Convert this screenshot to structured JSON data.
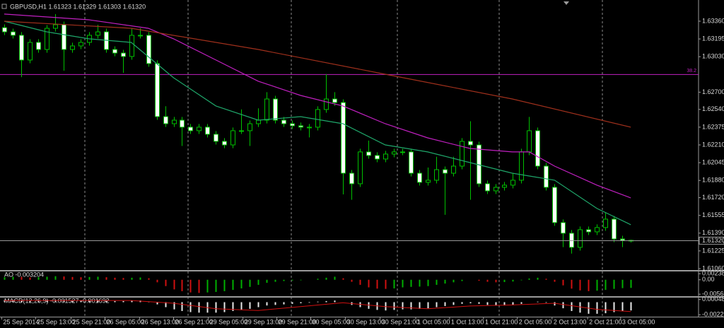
{
  "chart_data": [
    {
      "type": "candlestick",
      "title": "GBPUSD,H1  1.61323 1.61329 1.61303 1.61320",
      "xlim": [
        -0.5,
        82
      ],
      "xticks": [
        {
          "value": -0.3,
          "label": "25 Sep 2014"
        },
        {
          "value": 3.7,
          "label": "25 Sep 13:00"
        },
        {
          "value": 7.9,
          "label": "25 Sep 21:00"
        },
        {
          "value": 11.9,
          "label": "26 Sep 05:00"
        },
        {
          "value": 16.0,
          "label": "26 Sep 13:00"
        },
        {
          "value": 20.0,
          "label": "26 Sep 21:00"
        },
        {
          "value": 24.1,
          "label": "29 Sep 05:00"
        },
        {
          "value": 28.2,
          "label": "29 Sep 13:00"
        },
        {
          "value": 32.2,
          "label": "29 Sep 21:00"
        },
        {
          "value": 36.2,
          "label": "30 Sep 05:00"
        },
        {
          "value": 40.3,
          "label": "30 Sep 13:00"
        },
        {
          "value": 44.4,
          "label": "30 Sep 21:00"
        },
        {
          "value": 48.6,
          "label": "1 Oct 05:00"
        },
        {
          "value": 52.6,
          "label": "1 Oct 13:00"
        },
        {
          "value": 56.6,
          "label": "1 Oct 21:00"
        },
        {
          "value": 60.6,
          "label": "2 Oct 05:00"
        },
        {
          "value": 64.7,
          "label": "2 Oct 13:00"
        },
        {
          "value": 68.9,
          "label": "2 Oct 21:00"
        },
        {
          "value": 72.8,
          "label": "3 Oct 05:00"
        }
      ],
      "ylim": [
        1.61047,
        1.63557
      ],
      "yticks": [
        {
          "value": 1.6336,
          "label": "1.63360"
        },
        {
          "value": 1.63195,
          "label": "1.63195"
        },
        {
          "value": 1.6303,
          "label": "1.63030"
        },
        {
          "value": 1.627,
          "label": "1.62700"
        },
        {
          "value": 1.6254,
          "label": "1.62540"
        },
        {
          "value": 1.62375,
          "label": "1.62375"
        },
        {
          "value": 1.6221,
          "label": "1.62210"
        },
        {
          "value": 1.62045,
          "label": "1.62045"
        },
        {
          "value": 1.6188,
          "label": "1.61880"
        },
        {
          "value": 1.6172,
          "label": "1.61720"
        },
        {
          "value": 1.61555,
          "label": "1.61555"
        },
        {
          "value": 1.6139,
          "label": "1.61390"
        },
        {
          "value": 1.61225,
          "label": "1.61225"
        },
        {
          "value": 1.6106,
          "label": "1.61060"
        }
      ],
      "up_color": "#000000",
      "down_color": "#ffffff",
      "wick_color": "#00c000",
      "open": [
        1.633,
        1.63261,
        1.63229,
        1.62999,
        1.63163,
        1.63097,
        1.63294,
        1.63327,
        1.63097,
        1.6313,
        1.63163,
        1.63229,
        1.63261,
        1.63097,
        1.63064,
        1.63032,
        1.63229,
        1.63229,
        1.62966,
        1.62473,
        1.62407,
        1.6244,
        1.62375,
        1.62342,
        1.62375,
        1.62309,
        1.62243,
        1.6221,
        1.62342,
        1.62342,
        1.62407,
        1.6244,
        1.62637,
        1.6244,
        1.62407,
        1.62388,
        1.62375,
        1.62375,
        1.62539,
        1.62637,
        1.62604,
        1.61947,
        1.61849,
        1.62145,
        1.62112,
        1.62079,
        1.62125,
        1.62145,
        1.62145,
        1.61947,
        1.61862,
        1.61882,
        1.6198,
        1.61947,
        1.62013,
        1.62243,
        1.6221,
        1.61849,
        1.61783,
        1.61816,
        1.61836,
        1.61882,
        1.62145,
        1.62342,
        1.62013,
        1.61816,
        1.61488,
        1.61389,
        1.61258,
        1.61422,
        1.61402,
        1.61442,
        1.6152,
        1.61336,
        1.61323
      ],
      "high": [
        1.6333,
        1.63291,
        1.63259,
        1.63193,
        1.63193,
        1.63324,
        1.63426,
        1.63357,
        1.6316,
        1.63193,
        1.63259,
        1.63327,
        1.63291,
        1.63127,
        1.63094,
        1.63294,
        1.63294,
        1.63259,
        1.62996,
        1.6257,
        1.6247,
        1.6247,
        1.62405,
        1.62405,
        1.62405,
        1.62339,
        1.62273,
        1.62372,
        1.6254,
        1.62437,
        1.6255,
        1.627,
        1.62667,
        1.6247,
        1.62437,
        1.62418,
        1.62405,
        1.62569,
        1.62867,
        1.627,
        1.62634,
        1.61977,
        1.62175,
        1.6225,
        1.62142,
        1.62155,
        1.62175,
        1.62175,
        1.62175,
        1.61977,
        1.62,
        1.621,
        1.6201,
        1.621,
        1.62273,
        1.6243,
        1.6224,
        1.61879,
        1.61846,
        1.61866,
        1.6195,
        1.62175,
        1.6247,
        1.62372,
        1.62043,
        1.61846,
        1.61518,
        1.61419,
        1.61452,
        1.61452,
        1.61472,
        1.6158,
        1.6155,
        1.61366,
        1.61329
      ],
      "low": [
        1.63231,
        1.63199,
        1.6284,
        1.62969,
        1.63067,
        1.63067,
        1.63264,
        1.629,
        1.63067,
        1.631,
        1.63133,
        1.63199,
        1.63067,
        1.63034,
        1.6288,
        1.63002,
        1.63199,
        1.62936,
        1.62443,
        1.62377,
        1.62377,
        1.622,
        1.62312,
        1.62312,
        1.62279,
        1.62213,
        1.6218,
        1.6218,
        1.62312,
        1.622,
        1.62377,
        1.6241,
        1.6241,
        1.62377,
        1.62358,
        1.62345,
        1.6228,
        1.62345,
        1.62509,
        1.62574,
        1.6175,
        1.617,
        1.61819,
        1.62082,
        1.62049,
        1.62049,
        1.62095,
        1.62115,
        1.61917,
        1.61832,
        1.61832,
        1.61852,
        1.6156,
        1.61917,
        1.61983,
        1.617,
        1.61819,
        1.61753,
        1.61753,
        1.61786,
        1.61806,
        1.61852,
        1.62115,
        1.61983,
        1.61786,
        1.61458,
        1.6126,
        1.612,
        1.61228,
        1.61372,
        1.61372,
        1.61412,
        1.61306,
        1.6126,
        1.61303
      ],
      "close": [
        1.63261,
        1.63229,
        1.62999,
        1.63163,
        1.63097,
        1.63294,
        1.63327,
        1.63097,
        1.6313,
        1.63163,
        1.63229,
        1.63261,
        1.63097,
        1.63064,
        1.63032,
        1.63229,
        1.63229,
        1.62966,
        1.62473,
        1.62407,
        1.6244,
        1.62375,
        1.62342,
        1.62375,
        1.62309,
        1.62243,
        1.6221,
        1.62342,
        1.62342,
        1.62407,
        1.6244,
        1.62637,
        1.6244,
        1.62407,
        1.62388,
        1.62375,
        1.62375,
        1.62539,
        1.62637,
        1.62604,
        1.61947,
        1.61849,
        1.62145,
        1.62112,
        1.62079,
        1.62125,
        1.62145,
        1.62145,
        1.61947,
        1.61862,
        1.61882,
        1.6198,
        1.61947,
        1.62013,
        1.62243,
        1.6221,
        1.61849,
        1.61783,
        1.61816,
        1.61836,
        1.61882,
        1.62145,
        1.62342,
        1.62013,
        1.61816,
        1.61488,
        1.61389,
        1.61258,
        1.61422,
        1.61402,
        1.61442,
        1.6152,
        1.61336,
        1.61323,
        1.6132
      ],
      "lines": [
        {
          "color": "#1fa66a",
          "x": [
            0,
            5,
            10,
            15,
            20,
            25,
            30,
            35,
            40,
            45,
            50,
            55,
            60,
            65,
            70,
            74
          ],
          "values": [
            1.6336,
            1.63261,
            1.63196,
            1.63163,
            1.62834,
            1.62572,
            1.6244,
            1.62473,
            1.62407,
            1.6221,
            1.62145,
            1.62046,
            1.61947,
            1.61882,
            1.61619,
            1.61468
          ]
        },
        {
          "color": "#c020c0",
          "x": [
            0,
            10,
            17,
            20,
            25,
            30,
            35,
            40,
            45,
            50,
            55,
            60,
            62,
            65,
            70,
            74
          ],
          "values": [
            1.63426,
            1.63373,
            1.63294,
            1.63196,
            1.62999,
            1.62802,
            1.6267,
            1.62572,
            1.62407,
            1.62276,
            1.62177,
            1.62145,
            1.62145,
            1.62013,
            1.61836,
            1.61717
          ]
        },
        {
          "color": "#a0301c",
          "x": [
            0,
            15,
            30,
            45,
            60,
            74
          ],
          "values": [
            1.6336,
            1.63294,
            1.63097,
            1.62867,
            1.62637,
            1.62375
          ]
        }
      ],
      "levels": [
        {
          "value": 1.62865,
          "label": "38.2",
          "color": "#c020c0"
        }
      ],
      "last": {
        "value": 1.6132,
        "label": "1.61320",
        "color": "#9a9a9a"
      }
    },
    {
      "type": "bar",
      "title": "AO -0.003204",
      "up_color": "#00b000",
      "down_color": "#d01010",
      "ylim": [
        -0.0062,
        0.003
      ],
      "yticks": [
        0.002386,
        {
          "value": 0,
          "label": "0.00"
        },
        -0.005693
      ],
      "values": [
        0.001,
        0.0012,
        0.0011,
        0.0009,
        0.001,
        0.0012,
        0.0014,
        0.0013,
        0.0011,
        0.001,
        0.0011,
        0.0012,
        0.001,
        0.0008,
        0.0007,
        0.0008,
        0.0009,
        0.0006,
        -0.001,
        -0.0025,
        -0.0038,
        -0.0045,
        -0.005,
        -0.0052,
        -0.005,
        -0.0048,
        -0.0045,
        -0.004,
        -0.0034,
        -0.0028,
        -0.002,
        -0.0012,
        -0.0008,
        -0.0005,
        -0.0003,
        -0.0002,
        0,
        0.0004,
        0.0008,
        0.0012,
        0.0006,
        -0.0008,
        -0.002,
        -0.003,
        -0.0035,
        -0.0036,
        -0.0034,
        -0.003,
        -0.0028,
        -0.0027,
        -0.0025,
        -0.002,
        -0.0015,
        -0.001,
        -0.0005,
        0,
        -0.0004,
        -0.0008,
        -0.001,
        -0.0009,
        -0.0007,
        -0.0002,
        0.0005,
        0.0008,
        0.0004,
        -0.0008,
        -0.0022,
        -0.0035,
        -0.0042,
        -0.0045,
        -0.0043,
        -0.004,
        -0.0036,
        -0.0033,
        -0.003204
      ]
    },
    {
      "type": "bar",
      "title": "MACD(12,26,9) -0.001527 -0.001692",
      "color": "#e8e8e8",
      "ylim": [
        -0.0025,
        0.0007
      ],
      "yticks": [
        0.000482,
        {
          "value": -0.00229,
          "label": "-0.00229"
        }
      ],
      "values": [
        0.0004,
        0.0004,
        0.0003,
        0.0003,
        0.0003,
        0.0004,
        0.0004,
        0.0004,
        0.0003,
        0.0003,
        0.0003,
        0.0004,
        0.0003,
        0.0002,
        0.0002,
        0.0003,
        0.0003,
        0.0001,
        -0.0004,
        -0.0009,
        -0.0013,
        -0.0016,
        -0.0018,
        -0.0019,
        -0.0019,
        -0.0019,
        -0.0018,
        -0.0016,
        -0.0014,
        -0.0012,
        -0.0009,
        -0.0006,
        -0.0005,
        -0.0004,
        -0.0003,
        -0.0002,
        -0.0001,
        0.0001,
        0.0002,
        0.0003,
        0,
        -0.0005,
        -0.0009,
        -0.0012,
        -0.0014,
        -0.0015,
        -0.0014,
        -0.0013,
        -0.0013,
        -0.0012,
        -0.0011,
        -0.0009,
        -0.0007,
        -0.0005,
        -0.0003,
        -0.0002,
        -0.0003,
        -0.0005,
        -0.0006,
        -0.0006,
        -0.0005,
        -0.0003,
        0,
        0.0001,
        -0.0001,
        -0.0006,
        -0.0011,
        -0.0016,
        -0.0019,
        -0.0021,
        -0.0021,
        -0.002,
        -0.0018,
        -0.0016,
        -0.0015
      ],
      "signal": {
        "color": "#d01010",
        "x": [
          0,
          15,
          20,
          25,
          30,
          35,
          40,
          45,
          50,
          55,
          60,
          65,
          70,
          74
        ],
        "values": [
          0.0003,
          0.0003,
          -0.0002,
          -0.0012,
          -0.0015,
          -0.0008,
          -0.0001,
          -0.0008,
          -0.0012,
          -0.0007,
          -0.0005,
          -0.0002,
          -0.0013,
          -0.0017
        ]
      }
    }
  ]
}
